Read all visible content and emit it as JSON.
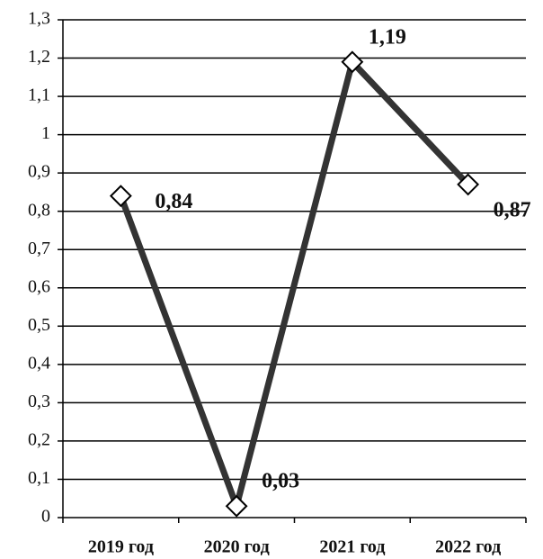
{
  "chart_data": {
    "type": "line",
    "categories": [
      "2019 год",
      "2020 год",
      "2021 год",
      "2022 год"
    ],
    "series": [
      {
        "color": "#333333",
        "values": [
          0.84,
          0.03,
          1.19,
          0.87
        ],
        "value_labels": [
          "0,84",
          "0,03",
          "1,19",
          "0,87"
        ]
      }
    ],
    "ylim": [
      0,
      1.3
    ],
    "yticks": [
      0,
      {
        "value": 0.1,
        "label": "0,1"
      },
      {
        "value": 0.2,
        "label": "0,2"
      },
      {
        "value": 0.3,
        "label": "0,3"
      },
      {
        "value": 0.4,
        "label": "0,4"
      },
      {
        "value": 0.5,
        "label": "0,5"
      },
      {
        "value": 0.6,
        "label": "0,6"
      },
      {
        "value": 0.7,
        "label": "0,7"
      },
      {
        "value": 0.8,
        "label": "0,8"
      },
      {
        "value": 0.9,
        "label": "0,9"
      },
      1,
      {
        "value": 1.1,
        "label": "1,1"
      },
      {
        "value": 1.2,
        "label": "1,2"
      },
      {
        "value": 1.3,
        "label": "1,3"
      }
    ],
    "grid": true
  }
}
